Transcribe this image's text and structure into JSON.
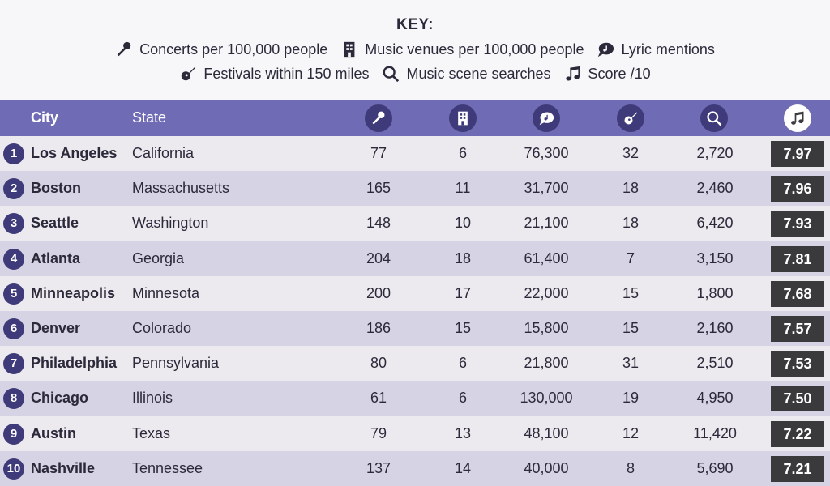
{
  "key": {
    "title": "KEY:",
    "items": [
      {
        "icon": "microphone-icon",
        "label": "Concerts per 100,000 people"
      },
      {
        "icon": "building-icon",
        "label": "Music venues per 100,000 people"
      },
      {
        "icon": "speech-bubble-icon",
        "label": "Lyric mentions"
      },
      {
        "icon": "guitar-icon",
        "label": "Festivals within 150 miles"
      },
      {
        "icon": "search-icon",
        "label": "Music scene searches"
      },
      {
        "icon": "music-note-icon",
        "label": "Score /10"
      }
    ]
  },
  "colors": {
    "header_bg": "#6f6bb4",
    "icon_circle": "#3f3b7a",
    "row_light": "#eceaef",
    "row_dark": "#d6d4e4",
    "score_bg": "#3a393c"
  },
  "chart_data": {
    "type": "table",
    "columns": [
      "City",
      "State",
      "microphone-icon",
      "building-icon",
      "speech-bubble-icon",
      "guitar-icon",
      "search-icon",
      "music-note-icon"
    ],
    "rows": [
      {
        "rank": "1",
        "city": "Los Angeles",
        "state": "California",
        "concerts": "77",
        "venues": "6",
        "lyrics": "76,300",
        "festivals": "32",
        "searches": "2,720",
        "score": "7.97"
      },
      {
        "rank": "2",
        "city": "Boston",
        "state": "Massachusetts",
        "concerts": "165",
        "venues": "11",
        "lyrics": "31,700",
        "festivals": "18",
        "searches": "2,460",
        "score": "7.96"
      },
      {
        "rank": "3",
        "city": "Seattle",
        "state": "Washington",
        "concerts": "148",
        "venues": "10",
        "lyrics": "21,100",
        "festivals": "18",
        "searches": "6,420",
        "score": "7.93"
      },
      {
        "rank": "4",
        "city": "Atlanta",
        "state": "Georgia",
        "concerts": "204",
        "venues": "18",
        "lyrics": "61,400",
        "festivals": "7",
        "searches": "3,150",
        "score": "7.81"
      },
      {
        "rank": "5",
        "city": "Minneapolis",
        "state": "Minnesota",
        "concerts": "200",
        "venues": "17",
        "lyrics": "22,000",
        "festivals": "15",
        "searches": "1,800",
        "score": "7.68"
      },
      {
        "rank": "6",
        "city": "Denver",
        "state": "Colorado",
        "concerts": "186",
        "venues": "15",
        "lyrics": "15,800",
        "festivals": "15",
        "searches": "2,160",
        "score": "7.57"
      },
      {
        "rank": "7",
        "city": "Philadelphia",
        "state": "Pennsylvania",
        "concerts": "80",
        "venues": "6",
        "lyrics": "21,800",
        "festivals": "31",
        "searches": "2,510",
        "score": "7.53"
      },
      {
        "rank": "8",
        "city": "Chicago",
        "state": "Illinois",
        "concerts": "61",
        "venues": "6",
        "lyrics": "130,000",
        "festivals": "19",
        "searches": "4,950",
        "score": "7.50"
      },
      {
        "rank": "9",
        "city": "Austin",
        "state": "Texas",
        "concerts": "79",
        "venues": "13",
        "lyrics": "48,100",
        "festivals": "12",
        "searches": "11,420",
        "score": "7.22"
      },
      {
        "rank": "10",
        "city": "Nashville",
        "state": "Tennessee",
        "concerts": "137",
        "venues": "14",
        "lyrics": "40,000",
        "festivals": "8",
        "searches": "5,690",
        "score": "7.21"
      }
    ]
  }
}
